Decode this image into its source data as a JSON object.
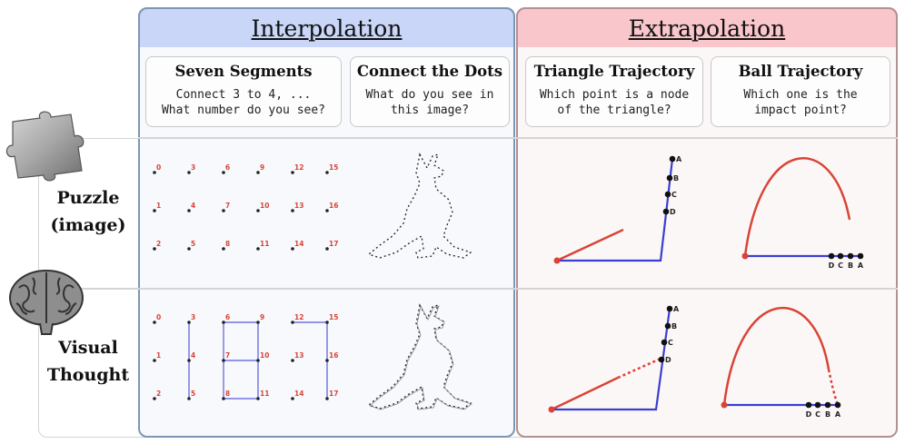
{
  "headers": {
    "interpolation": "Interpolation",
    "extrapolation": "Extrapolation"
  },
  "cards": [
    {
      "title": "Seven Segments",
      "body": "Connect 3 to 4, ...\nWhat number do you see?"
    },
    {
      "title": "Connect the Dots",
      "body": "What do you see in\nthis image?"
    },
    {
      "title": "Triangle Trajectory",
      "body": "Which point is a node\nof the triangle?"
    },
    {
      "title": "Ball Trajectory",
      "body": "Which one is the\nimpact point?"
    }
  ],
  "rows": [
    {
      "label_line1": "Puzzle",
      "label_line2": "(image)",
      "icon": "puzzle-piece-icon"
    },
    {
      "label_line1": "Visual",
      "label_line2": "Thought",
      "icon": "brain-icon"
    }
  ],
  "seven_segment_numbers": [
    "0",
    "3",
    "6",
    "9",
    "12",
    "15",
    "1",
    "4",
    "7",
    "10",
    "13",
    "16",
    "2",
    "5",
    "8",
    "11",
    "14",
    "17"
  ],
  "point_labels": [
    "A",
    "B",
    "C",
    "D"
  ],
  "colors": {
    "interp_header": "#c9d6f7",
    "extrap_header": "#f8c6cb",
    "red": "#d94436",
    "blue": "#3a3fcf"
  }
}
